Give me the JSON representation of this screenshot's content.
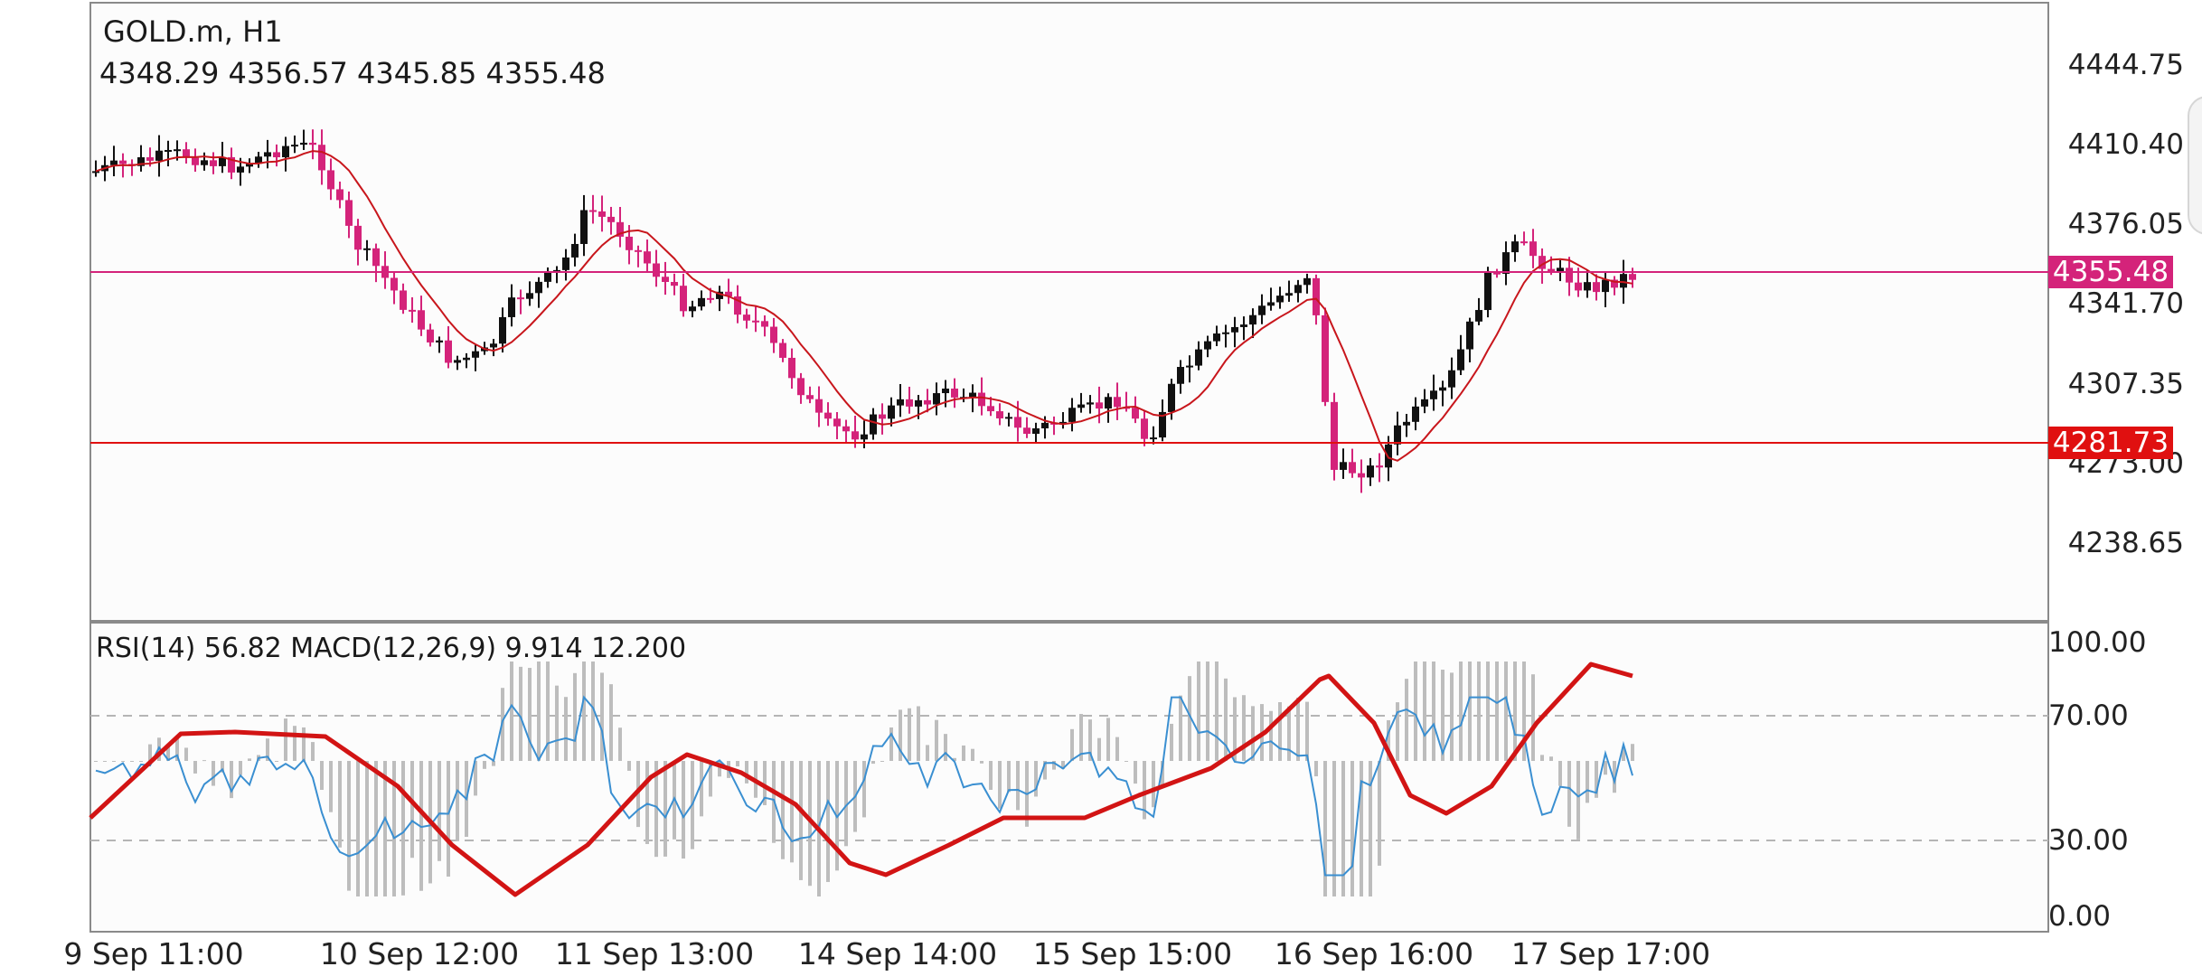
{
  "header": {
    "symbol_timeframe": "GOLD.m, H1",
    "ohlc": "4348.29 4356.57 4345.85 4355.48"
  },
  "indicator_header": "RSI(14) 56.82 MACD(12,26,9) 9.914 12.200",
  "colors": {
    "bull_candle": "#111111",
    "bear_candle": "#d4237a",
    "moving_average": "#c8161c",
    "bid_line": "#d4237a",
    "level_line": "#e01010",
    "rsi_line": "#3a8fd1",
    "macd_signal": "#d21414",
    "macd_histogram": "#bdbdbd"
  },
  "price_axis": {
    "ticks": [
      "4444.75",
      "4410.40",
      "4376.05",
      "4341.70",
      "4307.35",
      "4273.00",
      "4238.65"
    ],
    "current_price_tag": "4355.48",
    "level_tag": "4281.73"
  },
  "indicator_axis": {
    "ticks": [
      "100.00",
      "70.00",
      "30.00",
      "0.00"
    ]
  },
  "time_axis": {
    "labels": [
      "9 Sep 11:00",
      "10 Sep 12:00",
      "11 Sep 13:00",
      "14 Sep 14:00",
      "15 Sep 15:00",
      "16 Sep 16:00",
      "17 Sep 17:00"
    ]
  }
}
